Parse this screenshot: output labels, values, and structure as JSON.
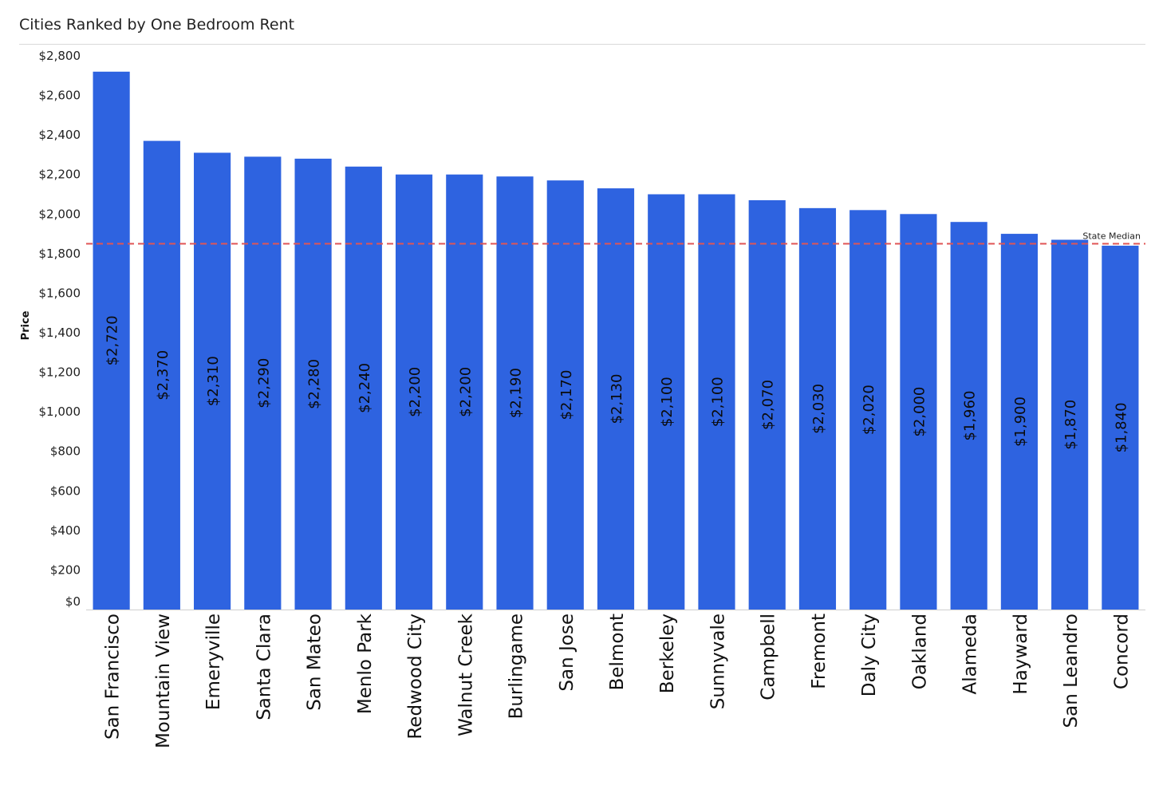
{
  "chart_data": {
    "type": "bar",
    "title": "Cities Ranked by One Bedroom Rent",
    "xlabel": "",
    "ylabel": "Price",
    "ylim": [
      0,
      2800
    ],
    "yticks": [
      0,
      200,
      400,
      600,
      800,
      1000,
      1200,
      1400,
      1600,
      1800,
      2000,
      2200,
      2400,
      2600,
      2800
    ],
    "ytick_labels": [
      "$0",
      "$200",
      "$400",
      "$600",
      "$800",
      "$1,000",
      "$1,200",
      "$1,400",
      "$1,600",
      "$1,800",
      "$2,000",
      "$2,200",
      "$2,400",
      "$2,600",
      "$2,800"
    ],
    "categories": [
      "San Francisco",
      "Mountain View",
      "Emeryville",
      "Santa Clara",
      "San Mateo",
      "Menlo Park",
      "Redwood City",
      "Walnut Creek",
      "Burlingame",
      "San Jose",
      "Belmont",
      "Berkeley",
      "Sunnyvale",
      "Campbell",
      "Fremont",
      "Daly City",
      "Oakland",
      "Alameda",
      "Hayward",
      "San Leandro",
      "Concord"
    ],
    "values": [
      2720,
      2370,
      2310,
      2290,
      2280,
      2240,
      2200,
      2200,
      2190,
      2170,
      2130,
      2100,
      2100,
      2070,
      2030,
      2020,
      2000,
      1960,
      1900,
      1870,
      1840
    ],
    "data_labels": [
      "$2,720",
      "$2,370",
      "$2,310",
      "$2,290",
      "$2,280",
      "$2,240",
      "$2,200",
      "$2,200",
      "$2,190",
      "$2,170",
      "$2,130",
      "$2,100",
      "$2,100",
      "$2,070",
      "$2,030",
      "$2,020",
      "$2,000",
      "$1,960",
      "$1,900",
      "$1,870",
      "$1,840"
    ],
    "reference_line": {
      "label": "State Median",
      "value": 1850,
      "color": "#e05555",
      "style": "dashed"
    },
    "bar_color": "#2e63e0",
    "grid": false,
    "legend": "none"
  }
}
